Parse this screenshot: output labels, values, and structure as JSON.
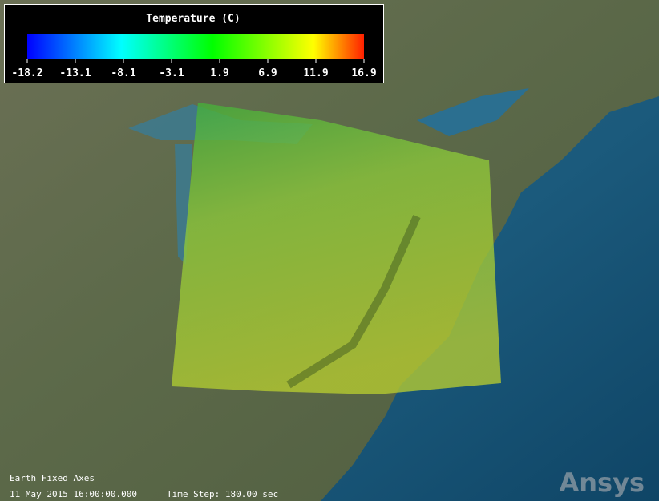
{
  "legend": {
    "title": "Temperature (C)",
    "ticks": [
      "-18.2",
      "-13.1",
      "-8.1",
      "-3.1",
      "1.9",
      "6.9",
      "11.9",
      "16.9"
    ]
  },
  "status": {
    "axes": "Earth Fixed Axes",
    "time": "11 May 2015 16:00:00.000",
    "time_step": "Time Step: 180.00 sec"
  },
  "logo": "Ansys"
}
